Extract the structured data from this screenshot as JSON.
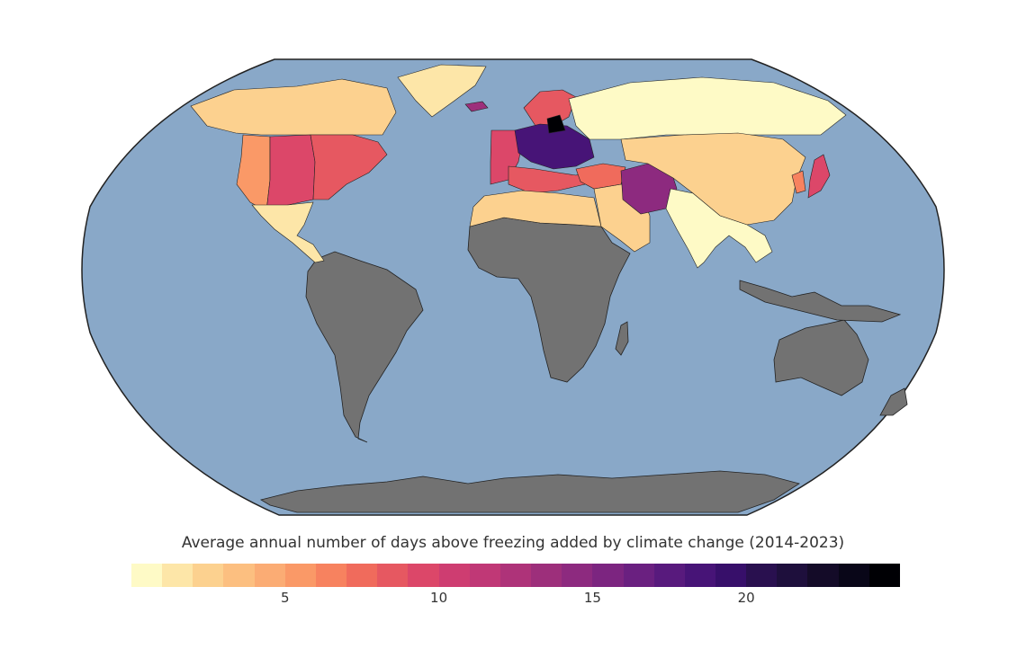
{
  "chart_data": {
    "type": "choropleth",
    "title": "Average annual number of days above freezing added by climate change (2014-2023)",
    "projection": "Robinson",
    "colorbar": {
      "min": 0,
      "max": 25,
      "step": 1,
      "ticks": [
        5,
        10,
        15,
        20
      ],
      "colors": [
        "#fefac6",
        "#fde6a8",
        "#fcd18f",
        "#fcbf80",
        "#fbac74",
        "#fa9967",
        "#f7825f",
        "#f06b5c",
        "#e65861",
        "#dc4769",
        "#ce3d71",
        "#c03876",
        "#ae3379",
        "#9d2f7b",
        "#8d2a7f",
        "#7c2580",
        "#6a2080",
        "#581a7d",
        "#471477",
        "#370f6a",
        "#29104f",
        "#1e0f3c",
        "#140b28",
        "#090618",
        "#000004"
      ]
    },
    "colors": {
      "ocean": "#89a8c8",
      "no_data_land": "#727272",
      "border": "#222222"
    },
    "regions": [
      {
        "name": "Northern Canada & Alaska",
        "level": 2
      },
      {
        "name": "Western United States",
        "level": 5
      },
      {
        "name": "Central United States",
        "level": 9
      },
      {
        "name": "Eastern United States",
        "level": 8
      },
      {
        "name": "Mexico & Central America",
        "level": 1
      },
      {
        "name": "Greenland",
        "level": 1
      },
      {
        "name": "Iceland",
        "level": 13
      },
      {
        "name": "Scandinavia",
        "level": 8
      },
      {
        "name": "Western Europe",
        "level": 9
      },
      {
        "name": "Central & Eastern Europe",
        "level": 18
      },
      {
        "name": "Baltic region",
        "level": 24
      },
      {
        "name": "Southern Europe",
        "level": 8
      },
      {
        "name": "North Africa",
        "level": 2
      },
      {
        "name": "Middle East",
        "level": 2
      },
      {
        "name": "Turkey & Caucasus",
        "level": 7
      },
      {
        "name": "Iran & Afghanistan",
        "level": 14
      },
      {
        "name": "Russia & Northern Asia",
        "level": 0
      },
      {
        "name": "Central Asia & China",
        "level": 2
      },
      {
        "name": "Japan",
        "level": 9
      },
      {
        "name": "Korea",
        "level": 6
      },
      {
        "name": "India & Southeast Asia",
        "level": 0
      }
    ]
  }
}
